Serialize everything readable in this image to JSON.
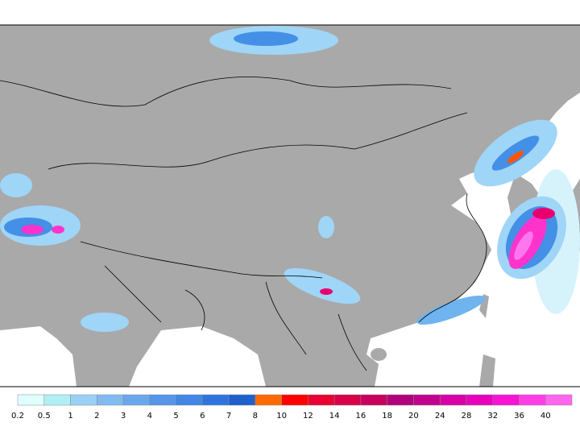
{
  "legend": {
    "levels": [
      "0.2",
      "0.5",
      "1",
      "2",
      "3",
      "4",
      "5",
      "6",
      "7",
      "8",
      "10",
      "12",
      "14",
      "16",
      "18",
      "20",
      "24",
      "28",
      "32",
      "36",
      "40"
    ],
    "colors": [
      "#e0ffff",
      "#b0f0f4",
      "#9ad0f6",
      "#82baf2",
      "#6aa8ee",
      "#5595ea",
      "#4286e6",
      "#2f74de",
      "#1e60cc",
      "#ff6a00",
      "#ff0000",
      "#ea0033",
      "#d8004a",
      "#c8005c",
      "#b0007c",
      "#c2008e",
      "#d800a6",
      "#e800bc",
      "#f812d4",
      "#ff3ee6",
      "#ff66ee"
    ]
  }
}
